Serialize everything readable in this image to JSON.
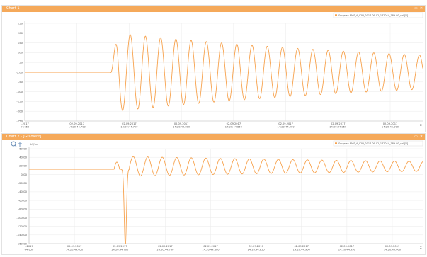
{
  "colors": {
    "header": "#f5a95a",
    "series": "#f7a24d",
    "grid": "#eaeaea",
    "text": "#555555"
  },
  "panels": [
    {
      "title": "Chart 1",
      "controls": [
        "▭",
        "✕"
      ],
      "legend_text": "Sergalse-RMS_A_02H_2017-09-02_142044_789.00_cal [V]",
      "tools": [],
      "y_axis_unit": "",
      "y_ticks": [
        "250",
        "200",
        "150",
        "100",
        "50",
        "0.00",
        "-50",
        "-100",
        "-150",
        "-200",
        "-250"
      ],
      "x_ticks": [
        {
          "date": "-.2017",
          "time": "44:650"
        },
        {
          "date": "02.09.2017",
          "time": "14:20:44.700"
        },
        {
          "date": "02.09.2017",
          "time": "14:20:44.750"
        },
        {
          "date": "02.09.2017",
          "time": "14:20:44.800"
        },
        {
          "date": "02.09.2017",
          "time": "14:20:44.850"
        },
        {
          "date": "02.09.2017",
          "time": "14:20:44.900"
        },
        {
          "date": "02.09.2017",
          "time": "14:20:44.950"
        },
        {
          "date": "02.09.2017",
          "time": "14:20:45.000"
        }
      ],
      "corner_label": "‡"
    },
    {
      "title": "Chart 2 - [Gradient]",
      "controls": [
        "▭",
        "✕"
      ],
      "legend_text": "Sergalse-RMS_A_02H_2017-09-02_142044_789.00_cal [V]",
      "tools": [
        "zoom-in",
        "pan"
      ],
      "y_axis_unit": "kV/ms",
      "y_ticks": [
        "60,00",
        "40,00",
        "20,00",
        "0,00",
        "-20,00",
        "-40,00",
        "-60,00",
        "-80,00",
        "-100,00",
        "-120,00",
        "-140,00",
        "-160,00"
      ],
      "x_ticks": [
        {
          "date": "-.2017",
          "time": "44:650"
        },
        {
          "date": "02.09.2017",
          "time": "14:20:44.650"
        },
        {
          "date": "02.09.2017",
          "time": "14:20:44.700"
        },
        {
          "date": "02.09.2017",
          "time": "14:20:44.750"
        },
        {
          "date": "02.09.2017",
          "time": "14:20:44.800"
        },
        {
          "date": "02.09.2017",
          "time": "14:20:44.850"
        },
        {
          "date": "02.09.2017",
          "time": "14:20:44.900"
        },
        {
          "date": "02.09.2017",
          "time": "14:20:44.950"
        },
        {
          "date": "02.09.2017",
          "time": "14:20:45.000"
        }
      ],
      "corner_label": "‡"
    }
  ]
}
